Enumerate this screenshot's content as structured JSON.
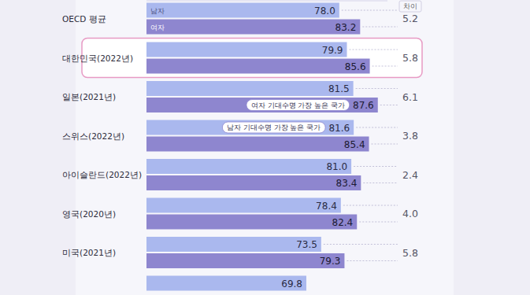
{
  "chart_data": {
    "type": "bar",
    "orientation": "horizontal",
    "data_labels": true,
    "tick_labels": false,
    "categories": [
      "OECD 평균",
      "대한민국(2022년)",
      "일본(2021년)",
      "스위스(2022년)",
      "아이슬란드(2022년)",
      "영국(2020년)",
      "미국(2021년)",
      null
    ],
    "series": [
      {
        "name": "남자",
        "color": "#aab8ee",
        "values": [
          78.0,
          79.9,
          81.5,
          81.6,
          81.0,
          78.4,
          73.5,
          69.8
        ],
        "value_labels": [
          "78.0",
          "79.9",
          "81.5",
          "81.6",
          "81.0",
          "78.4",
          "73.5",
          "69.8"
        ]
      },
      {
        "name": "여자",
        "color": "#8e86cf",
        "values": [
          83.2,
          85.6,
          87.6,
          85.4,
          83.4,
          82.4,
          79.3,
          null
        ],
        "value_labels": [
          "83.2",
          "85.6",
          "87.6",
          "85.4",
          "83.4",
          "82.4",
          "79.3",
          null
        ]
      }
    ],
    "difference": {
      "title": "차이",
      "values": [
        5.2,
        5.8,
        6.1,
        3.8,
        2.4,
        4.0,
        5.8,
        null
      ],
      "value_labels": [
        "5.2",
        "5.8",
        "6.1",
        "3.8",
        "2.4",
        "4.0",
        "5.8",
        null
      ]
    },
    "annotations": [
      {
        "text": "여자 기대수명 가장 높은 국가",
        "category": "일본(2021년)",
        "series": "여자"
      },
      {
        "text": "남자 기대수명 가장 높은 국가",
        "category": "스위스(2022년)",
        "series": "남자"
      }
    ],
    "xlim": [
      30,
      90
    ]
  }
}
